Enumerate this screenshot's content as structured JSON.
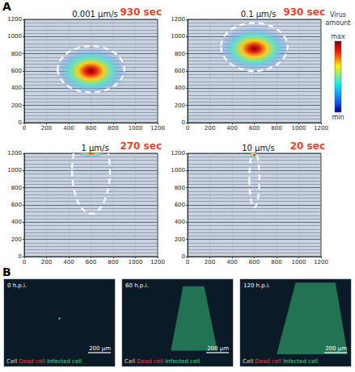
{
  "chart_data": [
    {
      "type": "heatmap",
      "title": "0.001 μm/s",
      "annotation": "930 sec",
      "xlim": [
        0,
        1200
      ],
      "ylim": [
        0,
        1200
      ],
      "xticks": [
        0,
        200,
        400,
        600,
        800,
        1000,
        1200
      ],
      "yticks": [
        0,
        200,
        400,
        600,
        800,
        1000,
        1200
      ],
      "grid": true,
      "virus": {
        "x": 600,
        "y": 600,
        "rx": 340,
        "ry": 290
      },
      "boundary": {
        "x": 600,
        "y": 620,
        "rx": 300,
        "ry": 270
      }
    },
    {
      "type": "heatmap",
      "title": "0.1 μm/s",
      "annotation": "930 sec",
      "xlim": [
        0,
        1200
      ],
      "ylim": [
        0,
        1200
      ],
      "xticks": [
        0,
        200,
        400,
        600,
        800,
        1000,
        1200
      ],
      "yticks": [
        0,
        200,
        400,
        600,
        800,
        1000,
        1200
      ],
      "grid": true,
      "virus": {
        "x": 600,
        "y": 860,
        "rx": 340,
        "ry": 280
      },
      "boundary": {
        "x": 600,
        "y": 880,
        "rx": 300,
        "ry": 280
      }
    },
    {
      "type": "heatmap",
      "title": "1 μm/s",
      "annotation": "270 sec",
      "xlim": [
        0,
        1200
      ],
      "ylim": [
        0,
        1200
      ],
      "xticks": [
        0,
        200,
        400,
        600,
        800,
        1000,
        1200
      ],
      "yticks": [
        0,
        200,
        400,
        600,
        800,
        1000,
        1200
      ],
      "grid": true,
      "virus": {
        "x": 600,
        "y": 1200,
        "rx": 130,
        "ry": 45
      },
      "boundary": {
        "x": 600,
        "y": 1000,
        "rx": 170,
        "ry": 500
      }
    },
    {
      "type": "heatmap",
      "title": "10 μm/s",
      "annotation": "20 sec",
      "xlim": [
        0,
        1200
      ],
      "ylim": [
        0,
        1200
      ],
      "xticks": [
        0,
        200,
        400,
        600,
        800,
        1000,
        1200
      ],
      "yticks": [
        0,
        200,
        400,
        600,
        800,
        1000,
        1200
      ],
      "grid": true,
      "virus": {
        "x": 600,
        "y": 1180,
        "rx": 35,
        "ry": 45
      },
      "boundary": {
        "x": 600,
        "y": 900,
        "rx": 45,
        "ry": 330
      }
    }
  ],
  "panel_labels": [
    "A",
    "B"
  ],
  "colorbar": {
    "label": "Virus amount",
    "max": "max",
    "min": "min"
  },
  "images": [
    {
      "label": "0 h.p.i."
    },
    {
      "label": "60 h.p.i."
    },
    {
      "label": "120 h.p.i."
    }
  ],
  "image_legend": [
    {
      "text": "Cell",
      "color": "#d8d8d8"
    },
    {
      "text": "Dead cell",
      "color": "#ff3b3b"
    },
    {
      "text": "Infected cell",
      "color": "#3fe08a"
    }
  ],
  "scale_bar": "200 μm"
}
